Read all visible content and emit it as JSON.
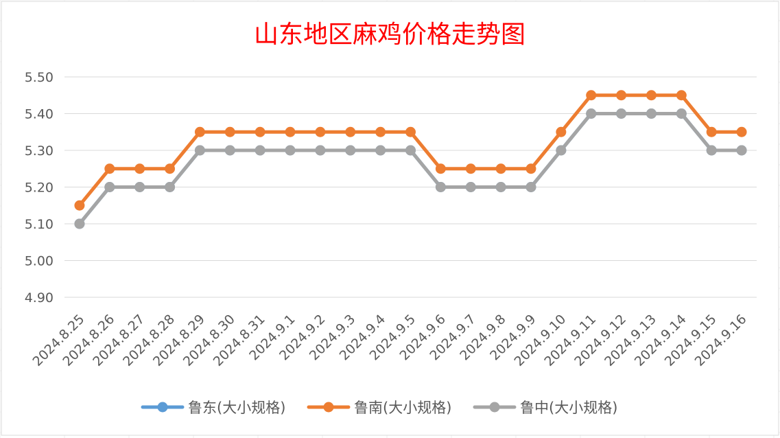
{
  "chart_data": {
    "type": "line",
    "title": "山东地区麻鸡价格走势图",
    "xlabel": "",
    "ylabel": "",
    "categories": [
      "2024.8.25",
      "2024.8.26",
      "2024.8.27",
      "2024.8.28",
      "2024.8.29",
      "2024.8.30",
      "2024.8.31",
      "2024.9.1",
      "2024.9.2",
      "2024.9.3",
      "2024.9.4",
      "2024.9.5",
      "2024.9.6",
      "2024.9.7",
      "2024.9.8",
      "2024.9.9",
      "2024.9.10",
      "2024.9.11",
      "2024.9.12",
      "2024.9.13",
      "2024.9.14",
      "2024.9.15",
      "2024.9.16"
    ],
    "ylim": [
      4.9,
      5.5
    ],
    "yticks": [
      "4.90",
      "5.00",
      "5.10",
      "5.20",
      "5.30",
      "5.40",
      "5.50"
    ],
    "grid": true,
    "legend_position": "bottom",
    "series": [
      {
        "name": "鲁东(大小规格)",
        "color": "#5b9bd5",
        "values": [
          5.1,
          5.2,
          5.2,
          5.2,
          5.3,
          5.3,
          5.3,
          5.3,
          5.3,
          5.3,
          5.3,
          5.3,
          5.2,
          5.2,
          5.2,
          5.2,
          5.3,
          5.4,
          5.4,
          5.4,
          5.4,
          5.3,
          5.3
        ]
      },
      {
        "name": "鲁南(大小规格)",
        "color": "#ed7d31",
        "values": [
          5.15,
          5.25,
          5.25,
          5.25,
          5.35,
          5.35,
          5.35,
          5.35,
          5.35,
          5.35,
          5.35,
          5.35,
          5.25,
          5.25,
          5.25,
          5.25,
          5.35,
          5.45,
          5.45,
          5.45,
          5.45,
          5.35,
          5.35
        ]
      },
      {
        "name": "鲁中(大小规格)",
        "color": "#a5a5a5",
        "values": [
          5.1,
          5.2,
          5.2,
          5.2,
          5.3,
          5.3,
          5.3,
          5.3,
          5.3,
          5.3,
          5.3,
          5.3,
          5.2,
          5.2,
          5.2,
          5.2,
          5.3,
          5.4,
          5.4,
          5.4,
          5.4,
          5.3,
          5.3
        ]
      }
    ]
  }
}
